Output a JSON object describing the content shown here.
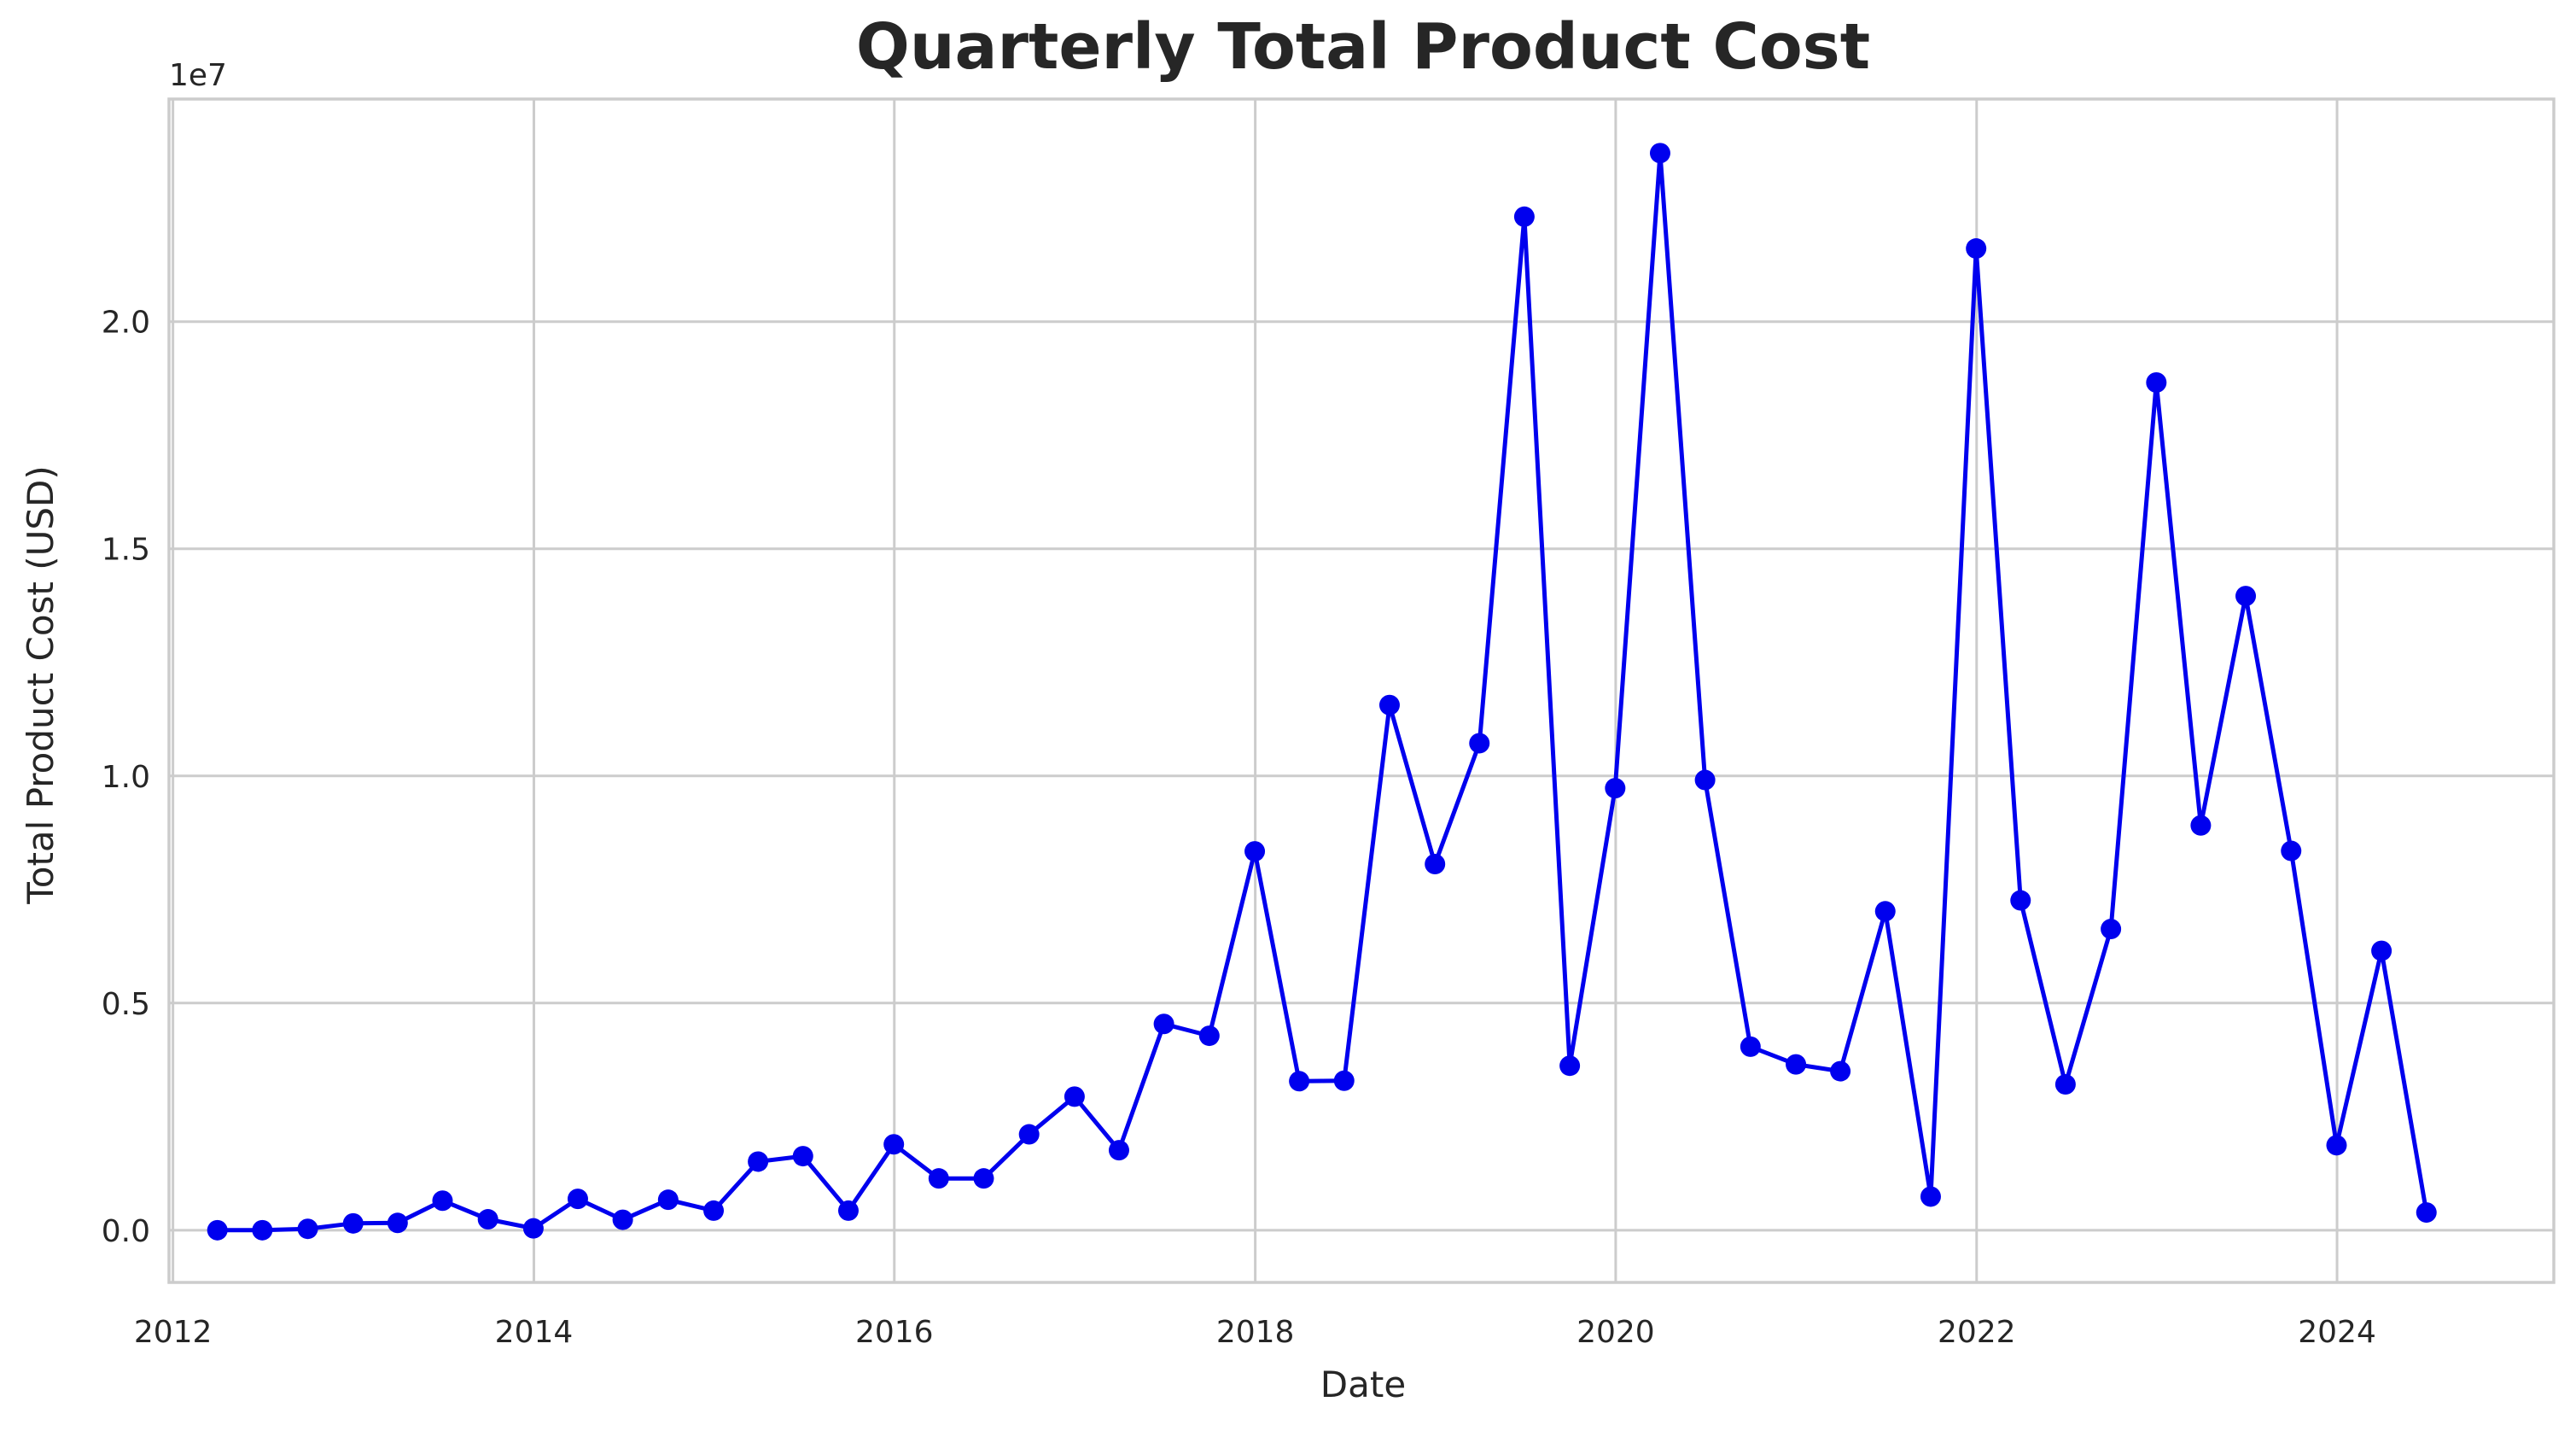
{
  "chart_data": {
    "type": "line",
    "title": "Quarterly Total Product Cost",
    "xlabel": "Date",
    "ylabel": "Total Product Cost (USD)",
    "y_offset_label": "1e7",
    "y_scale": 10000000,
    "x_ticks": [
      "2012",
      "2014",
      "2016",
      "2018",
      "2020",
      "2022",
      "2024"
    ],
    "y_ticks": [
      "0.0",
      "0.5",
      "1.0",
      "1.5",
      "2.0"
    ],
    "xlim": [
      "2011-12-24",
      "2025-03-15"
    ],
    "ylim": [
      -1150000,
      24900000
    ],
    "grid": true,
    "line_color": "#0000ee",
    "marker_color": "#0000ee",
    "series": [
      {
        "x": [
          "2012-03-31",
          "2012-06-30",
          "2012-09-30",
          "2012-12-31",
          "2013-03-31",
          "2013-06-30",
          "2013-09-30",
          "2013-12-31",
          "2014-03-31",
          "2014-06-30",
          "2014-09-30",
          "2014-12-31",
          "2015-03-31",
          "2015-06-30",
          "2015-09-30",
          "2015-12-31",
          "2016-03-31",
          "2016-06-30",
          "2016-09-30",
          "2016-12-31",
          "2017-03-31",
          "2017-06-30",
          "2017-09-30",
          "2017-12-31",
          "2018-03-31",
          "2018-06-30",
          "2018-09-30",
          "2018-12-31",
          "2019-03-31",
          "2019-06-30",
          "2019-09-30",
          "2019-12-31",
          "2020-03-31",
          "2020-06-30",
          "2020-09-30",
          "2020-12-31",
          "2021-03-31",
          "2021-06-30",
          "2021-09-30",
          "2021-12-31",
          "2022-03-31",
          "2022-06-30",
          "2022-09-30",
          "2022-12-31",
          "2023-03-31",
          "2023-06-30",
          "2023-09-30",
          "2023-12-31",
          "2024-03-31",
          "2024-06-30"
        ],
        "values": [
          0,
          0,
          30000,
          150000,
          160000,
          650000,
          240000,
          40000,
          690000,
          230000,
          670000,
          430000,
          1510000,
          1630000,
          430000,
          1890000,
          1140000,
          1140000,
          2110000,
          2940000,
          1760000,
          4540000,
          4280000,
          8340000,
          3280000,
          3290000,
          11560000,
          8060000,
          10720000,
          22310000,
          3620000,
          9730000,
          23710000,
          9910000,
          4040000,
          3650000,
          3500000,
          7020000,
          740000,
          21610000,
          7260000,
          3210000,
          6630000,
          18660000,
          8910000,
          13960000,
          8350000,
          1870000,
          6150000,
          390000
        ]
      }
    ]
  }
}
